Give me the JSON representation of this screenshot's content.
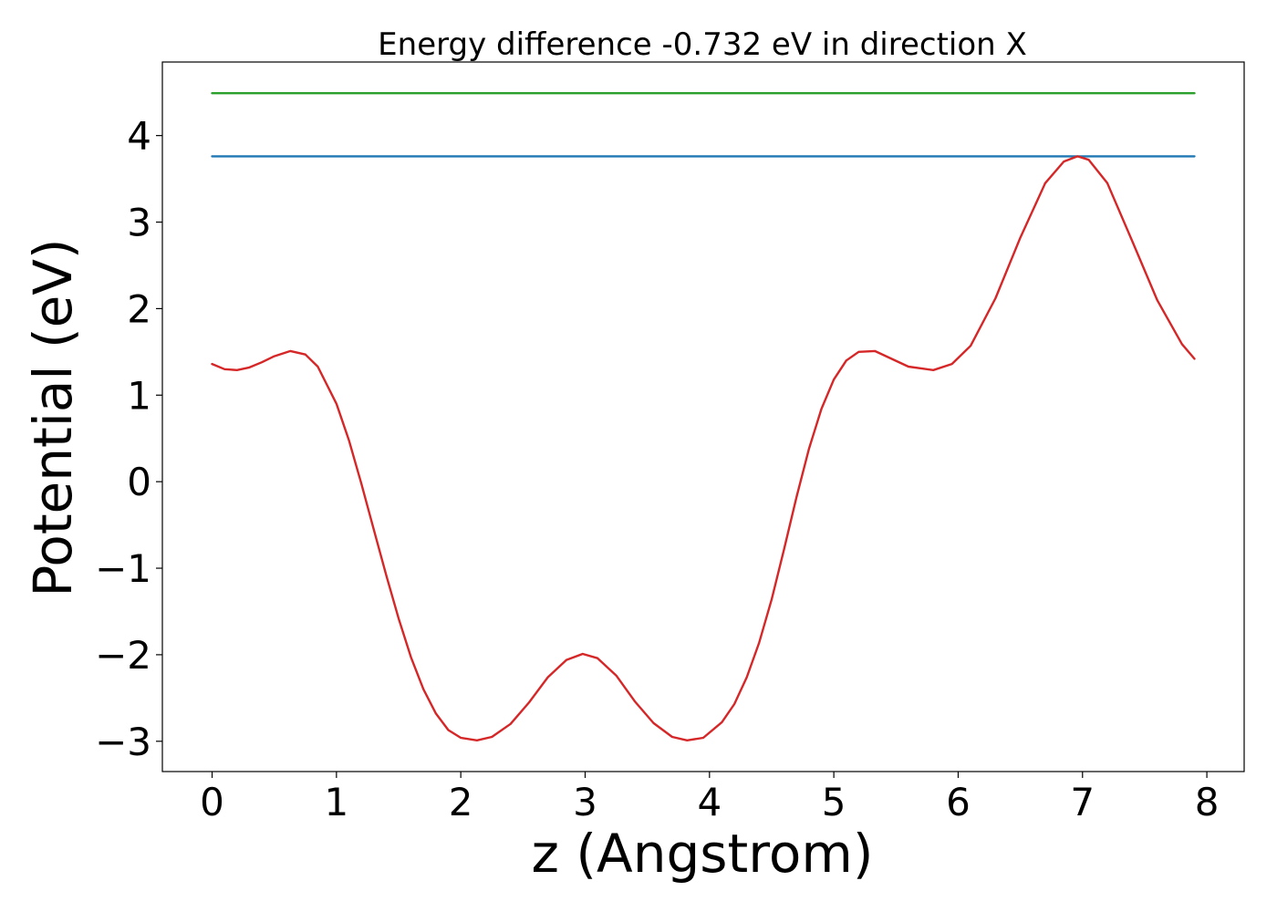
{
  "chart_data": {
    "type": "line",
    "title": "Energy difference -0.732 eV in direction X",
    "xlabel": "z (Angstrom)",
    "ylabel": "Potential (eV)",
    "xlim": [
      -0.4,
      8.3
    ],
    "ylim": [
      -3.35,
      4.85
    ],
    "xticks": [
      0,
      1,
      2,
      3,
      4,
      5,
      6,
      7,
      8
    ],
    "xtick_labels": [
      "0",
      "1",
      "2",
      "3",
      "4",
      "5",
      "6",
      "7",
      "8"
    ],
    "yticks": [
      -3,
      -2,
      -1,
      0,
      1,
      2,
      3,
      4
    ],
    "ytick_labels": [
      "−3",
      "−2",
      "−1",
      "0",
      "1",
      "2",
      "3",
      "4"
    ],
    "grid": false,
    "series": [
      {
        "color": "#2ca02c",
        "x": [
          0,
          7.9
        ],
        "y": [
          4.49,
          4.49
        ]
      },
      {
        "color": "#1f77b4",
        "x": [
          0,
          7.9
        ],
        "y": [
          3.76,
          3.76
        ]
      },
      {
        "color": "#d62728",
        "x": [
          0,
          0.1,
          0.2,
          0.3,
          0.4,
          0.5,
          0.63,
          0.75,
          0.85,
          1.0,
          1.1,
          1.2,
          1.3,
          1.4,
          1.5,
          1.6,
          1.7,
          1.8,
          1.9,
          2.0,
          2.13,
          2.25,
          2.4,
          2.55,
          2.7,
          2.85,
          2.98,
          3.1,
          3.25,
          3.4,
          3.55,
          3.7,
          3.82,
          3.95,
          4.1,
          4.2,
          4.3,
          4.4,
          4.5,
          4.6,
          4.7,
          4.8,
          4.9,
          5.0,
          5.1,
          5.2,
          5.33,
          5.45,
          5.6,
          5.8,
          5.95,
          6.1,
          6.3,
          6.5,
          6.7,
          6.85,
          6.96,
          7.05,
          7.2,
          7.4,
          7.6,
          7.8,
          7.9
        ],
        "y": [
          1.36,
          1.3,
          1.29,
          1.32,
          1.38,
          1.45,
          1.51,
          1.47,
          1.33,
          0.9,
          0.48,
          -0.02,
          -0.55,
          -1.08,
          -1.58,
          -2.03,
          -2.4,
          -2.68,
          -2.87,
          -2.96,
          -2.99,
          -2.95,
          -2.8,
          -2.55,
          -2.26,
          -2.06,
          -1.99,
          -2.04,
          -2.24,
          -2.54,
          -2.79,
          -2.95,
          -2.99,
          -2.96,
          -2.78,
          -2.57,
          -2.26,
          -1.86,
          -1.36,
          -0.78,
          -0.18,
          0.38,
          0.84,
          1.18,
          1.4,
          1.5,
          1.51,
          1.43,
          1.33,
          1.29,
          1.36,
          1.57,
          2.12,
          2.82,
          3.45,
          3.7,
          3.76,
          3.72,
          3.45,
          2.78,
          2.1,
          1.59,
          1.42
        ]
      }
    ]
  }
}
